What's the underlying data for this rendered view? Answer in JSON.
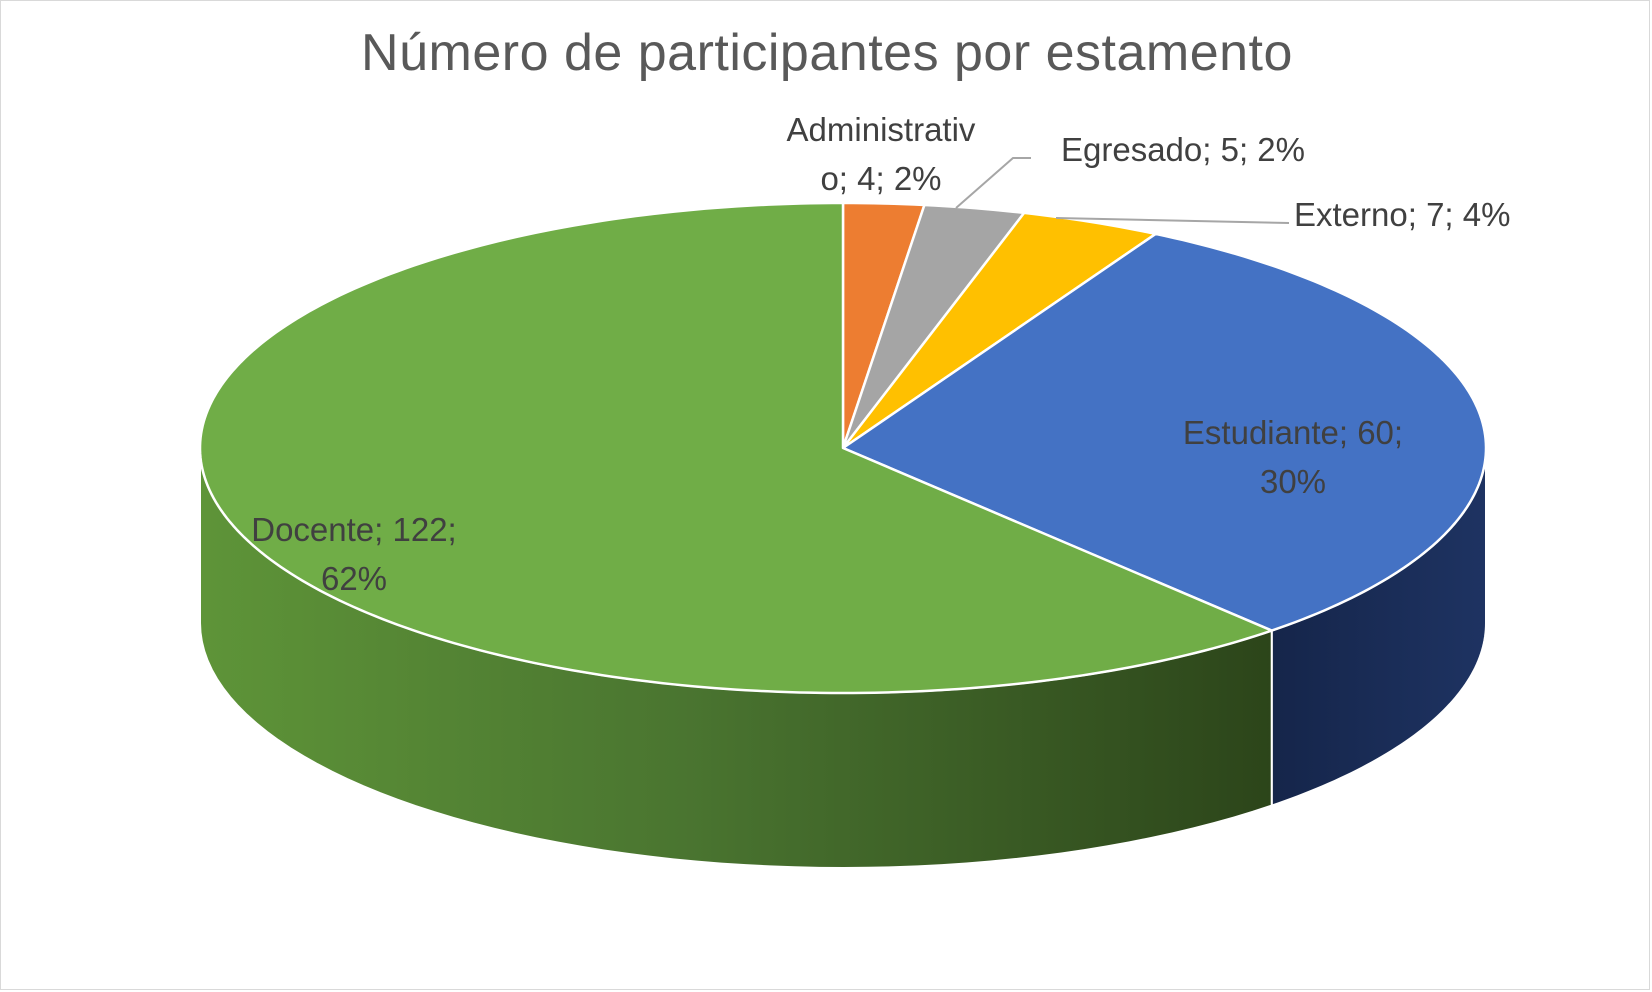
{
  "chart_data": {
    "type": "pie",
    "variant": "3d",
    "title": "Número de participantes por estamento",
    "slices": [
      {
        "name": "Administrativo",
        "value": 4,
        "percent": "2%",
        "color": "#ED7D31",
        "side_color": "#B35A1F",
        "label_lines": [
          "Administrativ",
          "o; 4; 2%"
        ]
      },
      {
        "name": "Egresado",
        "value": 5,
        "percent": "2%",
        "color": "#A5A5A5",
        "side_color": "#6F6F6F",
        "label_lines": [
          "Egresado; 5; 2%"
        ]
      },
      {
        "name": "Externo",
        "value": 7,
        "percent": "4%",
        "color": "#FFC000",
        "side_color": "#B38600",
        "label_lines": [
          "Externo; 7; 4%"
        ]
      },
      {
        "name": "Estudiante",
        "value": 60,
        "percent": "30%",
        "color": "#4472C4",
        "side_color": "#1A2B4F",
        "label_lines": [
          "Estudiante; 60;",
          "30%"
        ]
      },
      {
        "name": "Docente",
        "value": 122,
        "percent": "62%",
        "color": "#70AD47",
        "side_color": "#3F6A28",
        "label_lines": [
          "Docente; 122;",
          "62%"
        ]
      }
    ],
    "legend": "none"
  }
}
